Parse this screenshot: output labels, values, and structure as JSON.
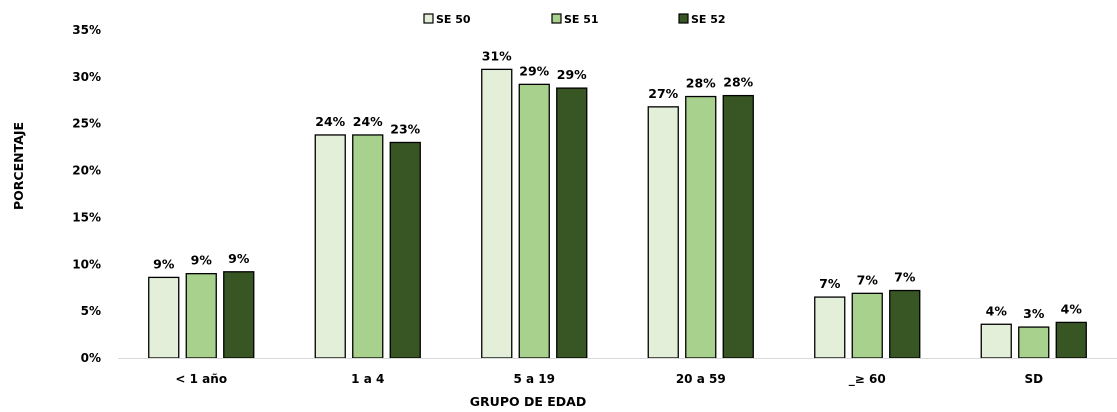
{
  "chart_data": {
    "type": "bar",
    "title": "",
    "xlabel": "GRUPO DE EDAD",
    "ylabel": "PORCENTAJE",
    "categories": [
      "< 1 año",
      "1 a 4",
      "5 a 19",
      "20 a 59",
      "_≥ 60",
      "SD"
    ],
    "ylim": [
      0,
      35
    ],
    "yticks": [
      "0%",
      "5%",
      "10%",
      "15%",
      "20%",
      "25%",
      "30%",
      "35%"
    ],
    "grid": false,
    "legend_position": "top-center",
    "series": [
      {
        "name": "SE 50",
        "color": "#e3efd8",
        "values": [
          8.6,
          23.8,
          30.8,
          26.8,
          6.5,
          3.6
        ],
        "labels": [
          "9%",
          "24%",
          "31%",
          "27%",
          "7%",
          "4%"
        ]
      },
      {
        "name": "SE 51",
        "color": "#a9d18e",
        "values": [
          9.0,
          23.8,
          29.2,
          27.9,
          6.9,
          3.3
        ],
        "labels": [
          "9%",
          "24%",
          "29%",
          "28%",
          "7%",
          "3%"
        ]
      },
      {
        "name": "SE 52",
        "color": "#375623",
        "values": [
          9.2,
          23.0,
          28.8,
          28.0,
          7.2,
          3.8
        ],
        "labels": [
          "9%",
          "23%",
          "29%",
          "28%",
          "7%",
          "4%"
        ]
      }
    ]
  }
}
